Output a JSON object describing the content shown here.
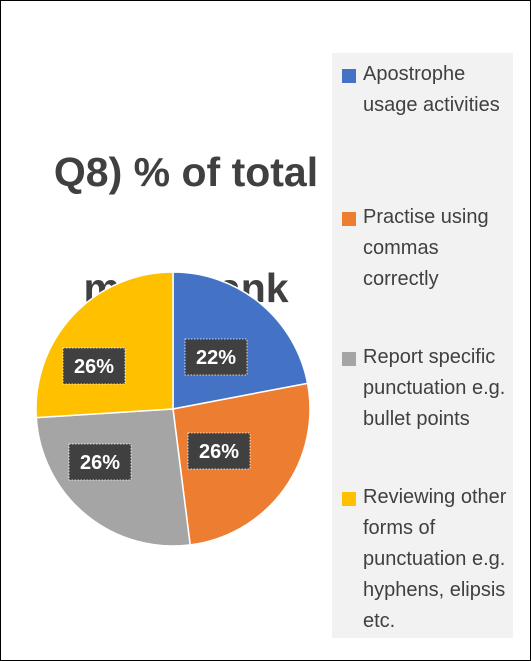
{
  "colors": {
    "blue": "#4472C4",
    "orange": "#ED7D31",
    "gray": "#A5A5A5",
    "yellow": "#FFC000",
    "label_bg": "#404040"
  },
  "chart_data": {
    "type": "pie",
    "title": "Q8) % of total mean rank",
    "title_lines": [
      "Q8) % of total",
      "mean rank"
    ],
    "legend_position": "right",
    "categories": [
      "Apostrophe usage activities",
      "Practise using commas correctly",
      "Report specific punctuation e.g. bullet points",
      "Reviewing other forms of punctuation e.g. hyphens, elipsis etc."
    ],
    "values": [
      22,
      26,
      26,
      26
    ],
    "labels": [
      "22%",
      "26%",
      "26%",
      "26%"
    ],
    "colors": [
      "#4472C4",
      "#ED7D31",
      "#A5A5A5",
      "#FFC000"
    ]
  }
}
